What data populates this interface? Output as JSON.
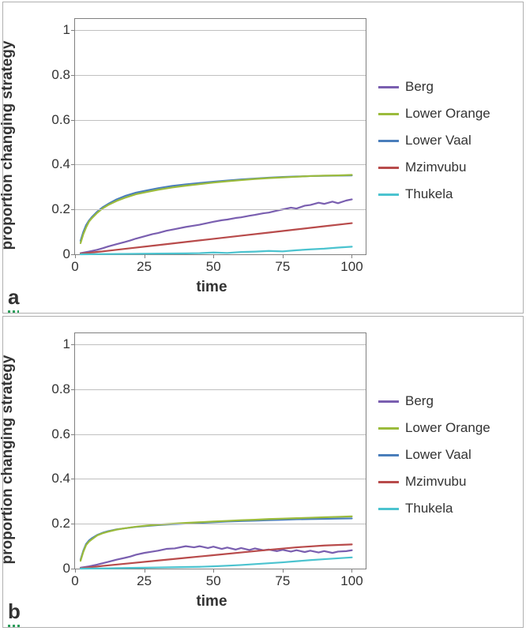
{
  "axes": {
    "xlabel": "time",
    "ylabel": "proportion changing strategy",
    "xlim": [
      0,
      105
    ],
    "ylim": [
      0,
      1.05
    ],
    "xticks": [
      0,
      25,
      50,
      75,
      100
    ],
    "yticks": [
      0,
      0.2,
      0.4,
      0.6,
      0.8,
      1
    ],
    "gridline_yvals": [
      0.2,
      0.4,
      0.6,
      0.8,
      1
    ],
    "tick_fontsize": 17,
    "label_fontsize": 19,
    "label_fontweight": "bold",
    "grid_color": "#c0c0c0",
    "axis_color": "#808080",
    "background_color": "#ffffff",
    "line_width": 2.2
  },
  "legend": {
    "position": "right",
    "fontsize": 17,
    "items": [
      {
        "label": "Berg",
        "color": "#7a5fb0"
      },
      {
        "label": "Lower Orange",
        "color": "#9bbb3c"
      },
      {
        "label": "Lower Vaal",
        "color": "#4a7ebb"
      },
      {
        "label": "Mzimvubu",
        "color": "#b84b4b"
      },
      {
        "label": "Thukela",
        "color": "#4bc3cf"
      }
    ]
  },
  "panels": [
    {
      "id": "a",
      "letter": "a",
      "series": [
        {
          "name": "Lower Vaal",
          "color": "#4a7ebb",
          "x": [
            2,
            3,
            4,
            5,
            6,
            8,
            10,
            12,
            15,
            18,
            22,
            26,
            30,
            35,
            40,
            45,
            50,
            55,
            60,
            65,
            70,
            75,
            80,
            85,
            90,
            95,
            100
          ],
          "y": [
            0.06,
            0.1,
            0.13,
            0.15,
            0.165,
            0.19,
            0.21,
            0.225,
            0.245,
            0.26,
            0.275,
            0.285,
            0.295,
            0.305,
            0.312,
            0.318,
            0.324,
            0.329,
            0.334,
            0.338,
            0.342,
            0.345,
            0.347,
            0.349,
            0.35,
            0.351,
            0.352
          ]
        },
        {
          "name": "Lower Orange",
          "color": "#9bbb3c",
          "x": [
            2,
            3,
            4,
            5,
            6,
            8,
            10,
            12,
            15,
            18,
            22,
            26,
            30,
            35,
            40,
            45,
            50,
            55,
            60,
            65,
            70,
            75,
            80,
            85,
            90,
            95,
            100
          ],
          "y": [
            0.05,
            0.09,
            0.12,
            0.145,
            0.16,
            0.185,
            0.205,
            0.22,
            0.238,
            0.252,
            0.268,
            0.278,
            0.288,
            0.298,
            0.306,
            0.313,
            0.32,
            0.326,
            0.331,
            0.336,
            0.34,
            0.343,
            0.346,
            0.349,
            0.351,
            0.352,
            0.354
          ]
        },
        {
          "name": "Berg",
          "color": "#7a5fb0",
          "x": [
            2,
            5,
            8,
            10,
            12,
            15,
            18,
            20,
            22,
            25,
            28,
            30,
            33,
            36,
            40,
            43,
            45,
            48,
            50,
            53,
            55,
            58,
            60,
            63,
            65,
            68,
            70,
            73,
            75,
            78,
            80,
            83,
            85,
            88,
            90,
            93,
            95,
            98,
            100
          ],
          "y": [
            0.005,
            0.012,
            0.02,
            0.027,
            0.035,
            0.045,
            0.055,
            0.062,
            0.07,
            0.08,
            0.09,
            0.095,
            0.105,
            0.112,
            0.122,
            0.128,
            0.132,
            0.14,
            0.145,
            0.152,
            0.155,
            0.162,
            0.165,
            0.172,
            0.176,
            0.183,
            0.186,
            0.195,
            0.2,
            0.208,
            0.204,
            0.217,
            0.22,
            0.23,
            0.225,
            0.235,
            0.228,
            0.24,
            0.245
          ]
        },
        {
          "name": "Mzimvubu",
          "color": "#b84b4b",
          "x": [
            2,
            10,
            20,
            30,
            40,
            50,
            60,
            70,
            80,
            90,
            100
          ],
          "y": [
            0.003,
            0.013,
            0.027,
            0.041,
            0.055,
            0.069,
            0.083,
            0.097,
            0.111,
            0.125,
            0.139
          ]
        },
        {
          "name": "Thukela",
          "color": "#4bc3cf",
          "x": [
            2,
            10,
            20,
            30,
            40,
            45,
            50,
            55,
            60,
            65,
            70,
            75,
            80,
            85,
            90,
            95,
            100
          ],
          "y": [
            0.0,
            0.001,
            0.002,
            0.003,
            0.004,
            0.005,
            0.008,
            0.006,
            0.01,
            0.012,
            0.015,
            0.013,
            0.018,
            0.022,
            0.025,
            0.03,
            0.034
          ]
        }
      ]
    },
    {
      "id": "b",
      "letter": "b",
      "series": [
        {
          "name": "Lower Vaal",
          "color": "#4a7ebb",
          "x": [
            2,
            3,
            4,
            5,
            6,
            8,
            10,
            12,
            15,
            18,
            22,
            26,
            30,
            35,
            40,
            45,
            50,
            55,
            60,
            65,
            70,
            75,
            80,
            85,
            90,
            95,
            100
          ],
          "y": [
            0.04,
            0.08,
            0.11,
            0.125,
            0.135,
            0.15,
            0.16,
            0.167,
            0.175,
            0.18,
            0.186,
            0.19,
            0.194,
            0.198,
            0.201,
            0.204,
            0.207,
            0.21,
            0.212,
            0.214,
            0.216,
            0.218,
            0.22,
            0.221,
            0.222,
            0.223,
            0.224
          ]
        },
        {
          "name": "Lower Orange",
          "color": "#9bbb3c",
          "x": [
            2,
            3,
            4,
            5,
            6,
            8,
            10,
            12,
            15,
            18,
            22,
            26,
            30,
            35,
            40,
            45,
            50,
            55,
            60,
            65,
            70,
            75,
            80,
            85,
            90,
            95,
            100
          ],
          "y": [
            0.035,
            0.075,
            0.105,
            0.12,
            0.13,
            0.148,
            0.158,
            0.165,
            0.174,
            0.18,
            0.187,
            0.192,
            0.196,
            0.2,
            0.204,
            0.207,
            0.21,
            0.213,
            0.216,
            0.218,
            0.221,
            0.223,
            0.225,
            0.227,
            0.229,
            0.231,
            0.233
          ]
        },
        {
          "name": "Berg",
          "color": "#7a5fb0",
          "x": [
            2,
            5,
            8,
            10,
            12,
            15,
            18,
            20,
            22,
            25,
            28,
            30,
            33,
            36,
            40,
            43,
            45,
            48,
            50,
            53,
            55,
            58,
            60,
            63,
            65,
            68,
            70,
            73,
            75,
            78,
            80,
            83,
            85,
            88,
            90,
            93,
            95,
            98,
            100
          ],
          "y": [
            0.004,
            0.01,
            0.018,
            0.024,
            0.03,
            0.04,
            0.048,
            0.054,
            0.062,
            0.07,
            0.076,
            0.08,
            0.088,
            0.09,
            0.1,
            0.095,
            0.1,
            0.092,
            0.098,
            0.088,
            0.094,
            0.085,
            0.092,
            0.083,
            0.09,
            0.082,
            0.085,
            0.078,
            0.084,
            0.076,
            0.082,
            0.074,
            0.08,
            0.072,
            0.078,
            0.07,
            0.076,
            0.078,
            0.082
          ]
        },
        {
          "name": "Mzimvubu",
          "color": "#b84b4b",
          "x": [
            2,
            10,
            20,
            30,
            40,
            50,
            60,
            70,
            80,
            90,
            100
          ],
          "y": [
            0.002,
            0.012,
            0.024,
            0.036,
            0.048,
            0.06,
            0.072,
            0.084,
            0.095,
            0.103,
            0.108
          ]
        },
        {
          "name": "Thukela",
          "color": "#4bc3cf",
          "x": [
            2,
            10,
            20,
            30,
            40,
            45,
            50,
            55,
            60,
            65,
            70,
            75,
            80,
            85,
            90,
            95,
            100
          ],
          "y": [
            0.0,
            0.001,
            0.003,
            0.005,
            0.007,
            0.008,
            0.01,
            0.013,
            0.016,
            0.02,
            0.024,
            0.028,
            0.033,
            0.038,
            0.042,
            0.046,
            0.05
          ]
        }
      ]
    }
  ]
}
